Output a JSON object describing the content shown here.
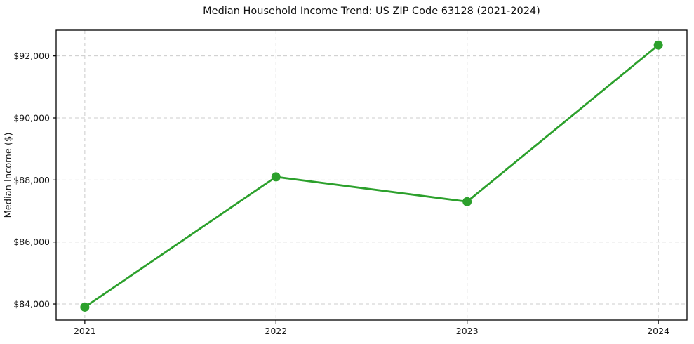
{
  "chart_data": {
    "type": "line",
    "title": "Median Household Income Trend: US ZIP Code 63128 (2021-2024)",
    "xlabel": "",
    "ylabel": "Median Income ($)",
    "x": [
      2021,
      2022,
      2023,
      2024
    ],
    "xtick_labels": [
      "2021",
      "2022",
      "2023",
      "2024"
    ],
    "series": [
      {
        "name": "Median Household Income",
        "values": [
          83900,
          88100,
          87300,
          92350
        ]
      }
    ],
    "ytick_values": [
      84000,
      86000,
      88000,
      90000,
      92000
    ],
    "ytick_labels": [
      "$84,000",
      "$86,000",
      "$88,000",
      "$90,000",
      "$92,000"
    ],
    "xlim": [
      2020.85,
      2024.15
    ],
    "ylim": [
      83480,
      92830
    ],
    "grid": true,
    "grid_style": "dashed",
    "legend_position": "none",
    "colors": {
      "line": "#2ca02c",
      "marker": "#2ca02c",
      "grid": "#cccccc",
      "spine": "#000000",
      "tick_text": "#1a1a1a",
      "background": "#ffffff"
    }
  }
}
